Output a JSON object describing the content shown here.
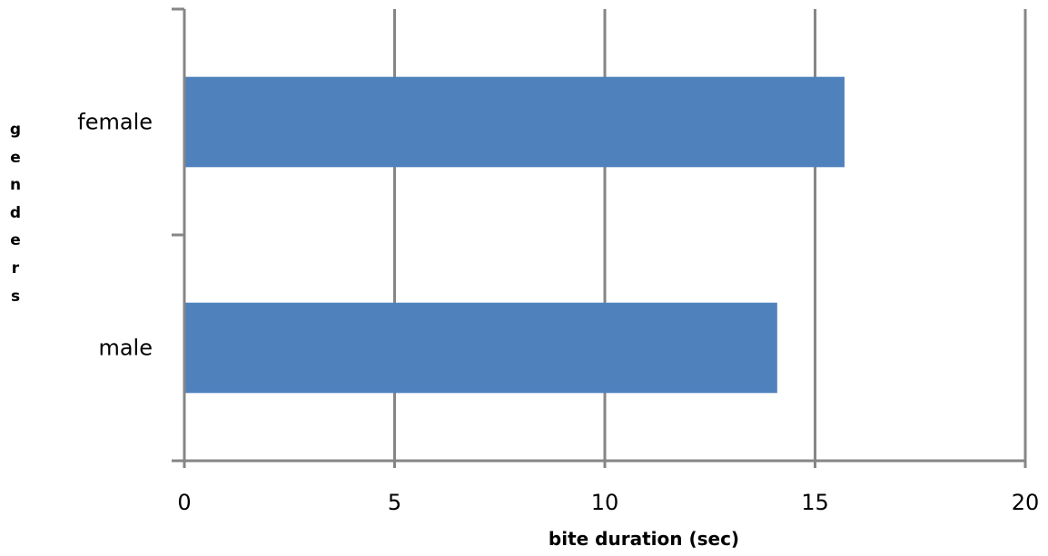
{
  "chart_data": {
    "type": "bar",
    "orientation": "horizontal",
    "categories": [
      "female",
      "male"
    ],
    "values": [
      15.7,
      14.1
    ],
    "xlabel": "bite duration (sec)",
    "ylabel": "genders",
    "xlim": [
      0,
      20
    ],
    "x_ticks": [
      "0",
      "5",
      "10",
      "15",
      "20"
    ],
    "grid": "vertical major gridlines",
    "legend": "none",
    "bar_color": "#4F81BD",
    "grid_color": "#868686"
  }
}
